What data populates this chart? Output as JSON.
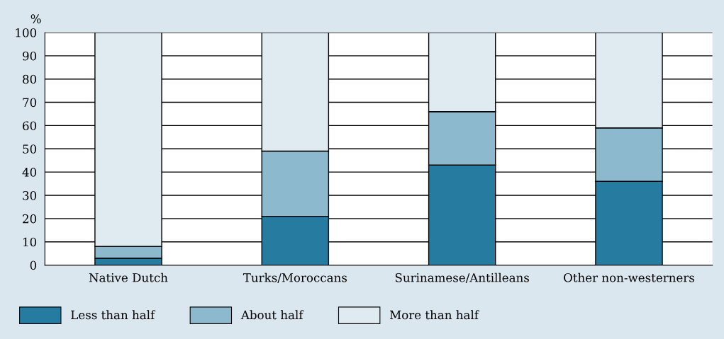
{
  "chart_data": {
    "type": "bar",
    "stacked": true,
    "ylabel": "%",
    "categories": [
      "Native Dutch",
      "Turks/Moroccans",
      "Surinamese/Antilleans",
      "Other non-westerners"
    ],
    "series": [
      {
        "name": "Less than half",
        "color": "#257ba0",
        "values": [
          3,
          21,
          43,
          36
        ]
      },
      {
        "name": "About half",
        "color": "#8db9cf",
        "values": [
          5,
          28,
          23,
          23
        ]
      },
      {
        "name": "More than half",
        "color": "#dfeaf1",
        "values": [
          92,
          51,
          34,
          41
        ]
      }
    ],
    "ylim": [
      0,
      100
    ],
    "yticks": [
      0,
      10,
      20,
      30,
      40,
      50,
      60,
      70,
      80,
      90,
      100
    ],
    "grid": "y",
    "legend": "bottom"
  }
}
